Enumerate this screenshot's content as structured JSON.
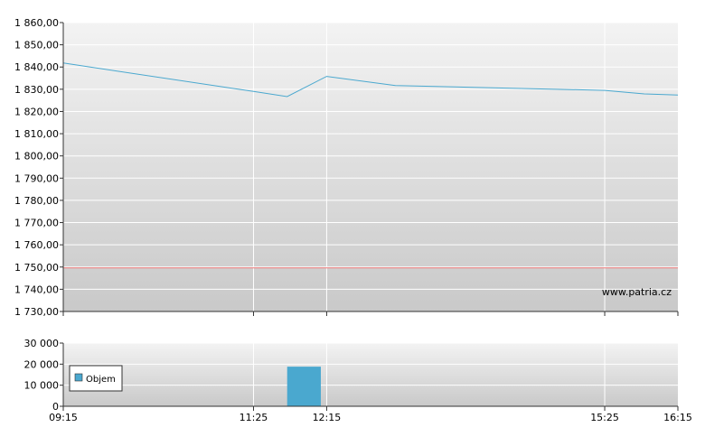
{
  "watermark": "www.patria.cz",
  "x_tick_labels": [
    "09:15",
    "11:25",
    "12:15",
    "15:25",
    "16:15"
  ],
  "colors": {
    "price_line": "#4aa8cf",
    "reference_line": "#ef7a7a",
    "volume_bar": "#4aa8cf",
    "grid": "#ffffff",
    "plot_bg_top": "#f3f3f3",
    "plot_bg_bottom": "#c9c9c9"
  },
  "chart_data": [
    {
      "type": "line",
      "name": "price",
      "title": "",
      "xlabel": "",
      "ylabel": "",
      "x": [
        "09:15",
        "11:25",
        "11:48",
        "12:15",
        "13:02",
        "15:25",
        "15:52",
        "16:15"
      ],
      "y": [
        1841.8,
        1829.0,
        1826.7,
        1835.8,
        1831.7,
        1829.5,
        1827.9,
        1827.4
      ],
      "ylim": [
        1730,
        1860
      ],
      "y_ticks": [
        "1 730,00",
        "1 740,00",
        "1 750,00",
        "1 760,00",
        "1 770,00",
        "1 780,00",
        "1 790,00",
        "1 800,00",
        "1 810,00",
        "1 820,00",
        "1 830,00",
        "1 840,00",
        "1 850,00",
        "1 860,00"
      ],
      "y_tick_values": [
        1730,
        1740,
        1750,
        1760,
        1770,
        1780,
        1790,
        1800,
        1810,
        1820,
        1830,
        1840,
        1850,
        1860
      ],
      "reference_line": 1749.6,
      "grid": true
    },
    {
      "type": "bar",
      "name": "volume",
      "legend": "Objem",
      "legend_position": "left",
      "x_start": [
        "11:48"
      ],
      "x_end": [
        "12:11"
      ],
      "values": [
        18800
      ],
      "ylim": [
        0,
        30000
      ],
      "y_ticks": [
        "0",
        "10 000",
        "20 000",
        "30 000"
      ],
      "y_tick_values": [
        0,
        10000,
        20000,
        30000
      ],
      "grid": true
    }
  ]
}
